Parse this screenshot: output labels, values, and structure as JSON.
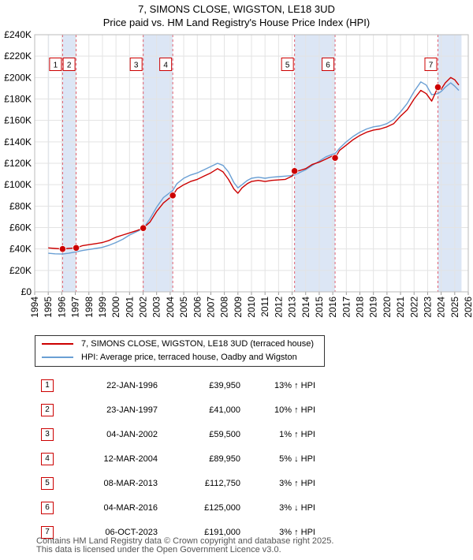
{
  "title_line1": "7, SIMONS CLOSE, WIGSTON, LE18 3UD",
  "title_line2": "Price paid vs. HM Land Registry's House Price Index (HPI)",
  "colors": {
    "property": "#cc0000",
    "hpi": "#6a9fd4",
    "shade": "#dce6f5",
    "marker_border": "#cc0000"
  },
  "legend": {
    "property_label": "7, SIMONS CLOSE, WIGSTON, LE18 3UD (terraced house)",
    "hpi_label": "HPI: Average price, terraced house, Oadby and Wigston"
  },
  "sales": [
    {
      "id": "1",
      "date": "22-JAN-1996",
      "price": "£39,950",
      "hpi": "13% ↑ HPI"
    },
    {
      "id": "2",
      "date": "23-JAN-1997",
      "price": "£41,000",
      "hpi": "10% ↑ HPI"
    },
    {
      "id": "3",
      "date": "04-JAN-2002",
      "price": "£59,500",
      "hpi": "1% ↑ HPI"
    },
    {
      "id": "4",
      "date": "12-MAR-2004",
      "price": "£89,950",
      "hpi": "5% ↓ HPI"
    },
    {
      "id": "5",
      "date": "08-MAR-2013",
      "price": "£112,750",
      "hpi": "3% ↑ HPI"
    },
    {
      "id": "6",
      "date": "04-MAR-2016",
      "price": "£125,000",
      "hpi": "3% ↓ HPI"
    },
    {
      "id": "7",
      "date": "06-OCT-2023",
      "price": "£191,000",
      "hpi": "3% ↑ HPI"
    }
  ],
  "footer": {
    "line1": "Contains HM Land Registry data © Crown copyright and database right 2025.",
    "line2": "This data is licensed under the Open Government Licence v3.0."
  },
  "chart_data": {
    "type": "line",
    "xlim": [
      1994,
      2026
    ],
    "ylim": [
      0,
      240000
    ],
    "grid": true,
    "x_ticks": [
      "1994",
      "1995",
      "1996",
      "1997",
      "1998",
      "1999",
      "2000",
      "2001",
      "2002",
      "2003",
      "2004",
      "2005",
      "2006",
      "2007",
      "2008",
      "2009",
      "2010",
      "2011",
      "2012",
      "2013",
      "2014",
      "2015",
      "2016",
      "2017",
      "2018",
      "2019",
      "2020",
      "2021",
      "2022",
      "2023",
      "2024",
      "2025",
      "2026"
    ],
    "y_ticks": [
      {
        "value": 0,
        "label": "£0"
      },
      {
        "value": 20000,
        "label": "£20K"
      },
      {
        "value": 40000,
        "label": "£40K"
      },
      {
        "value": 60000,
        "label": "£60K"
      },
      {
        "value": 80000,
        "label": "£80K"
      },
      {
        "value": 100000,
        "label": "£100K"
      },
      {
        "value": 120000,
        "label": "£120K"
      },
      {
        "value": 140000,
        "label": "£140K"
      },
      {
        "value": 160000,
        "label": "£160K"
      },
      {
        "value": 180000,
        "label": "£180K"
      },
      {
        "value": 200000,
        "label": "£200K"
      },
      {
        "value": 220000,
        "label": "£220K"
      },
      {
        "value": 240000,
        "label": "£240K"
      }
    ],
    "shaded_ranges": [
      [
        1995.0,
        1995.06
      ],
      [
        1996.06,
        1997.06
      ],
      [
        2002.01,
        2004.19
      ],
      [
        2013.18,
        2016.17
      ],
      [
        2023.76,
        2025.5
      ]
    ],
    "sale_points": [
      {
        "id": "1",
        "x": 1996.06,
        "y": 39950
      },
      {
        "id": "2",
        "x": 1997.06,
        "y": 41000
      },
      {
        "id": "3",
        "x": 2002.01,
        "y": 59500
      },
      {
        "id": "4",
        "x": 2004.19,
        "y": 89950
      },
      {
        "id": "5",
        "x": 2013.18,
        "y": 112750
      },
      {
        "id": "6",
        "x": 2016.17,
        "y": 125000
      },
      {
        "id": "7",
        "x": 2023.76,
        "y": 191000
      }
    ],
    "series": [
      {
        "name": "7, SIMONS CLOSE, WIGSTON, LE18 3UD (terraced house)",
        "color": "#cc0000",
        "x": [
          1995.0,
          1995.5,
          1996.06,
          1996.5,
          1997.06,
          1997.5,
          1998,
          1998.5,
          1999,
          1999.5,
          2000,
          2000.5,
          2001,
          2001.5,
          2002.01,
          2002.5,
          2003,
          2003.5,
          2004.19,
          2004.5,
          2005,
          2005.5,
          2006,
          2006.5,
          2007,
          2007.5,
          2007.9,
          2008.3,
          2008.7,
          2009.0,
          2009.3,
          2009.7,
          2010,
          2010.5,
          2011,
          2011.5,
          2012,
          2012.5,
          2013.0,
          2013.18,
          2013.5,
          2014,
          2014.5,
          2015,
          2015.5,
          2016.0,
          2016.17,
          2016.5,
          2017,
          2017.5,
          2018,
          2018.5,
          2019,
          2019.5,
          2020,
          2020.5,
          2021,
          2021.5,
          2022,
          2022.5,
          2022.9,
          2023.3,
          2023.76,
          2024,
          2024.3,
          2024.7,
          2025.0,
          2025.3
        ],
        "y": [
          41000,
          40500,
          39950,
          40500,
          41000,
          43000,
          44000,
          45000,
          46000,
          48000,
          51000,
          53000,
          55000,
          57000,
          59500,
          65000,
          75000,
          83000,
          89950,
          96000,
          100000,
          103000,
          105000,
          108000,
          111000,
          115000,
          112000,
          105000,
          96000,
          92000,
          97000,
          101000,
          103000,
          104000,
          103000,
          104000,
          104500,
          105000,
          108000,
          112750,
          113000,
          115000,
          119000,
          121000,
          124000,
          127000,
          125000,
          132000,
          137000,
          142000,
          146000,
          149000,
          151000,
          152000,
          154000,
          157000,
          164000,
          170000,
          180000,
          188000,
          185000,
          178000,
          191000,
          189000,
          195000,
          200000,
          198000,
          193000
        ]
      },
      {
        "name": "HPI: Average price, terraced house, Oadby and Wigston",
        "color": "#6a9fd4",
        "x": [
          1995.0,
          1995.5,
          1996.06,
          1996.5,
          1997.06,
          1997.5,
          1998,
          1998.5,
          1999,
          1999.5,
          2000,
          2000.5,
          2001,
          2001.5,
          2002.01,
          2002.5,
          2003,
          2003.5,
          2004.19,
          2004.5,
          2005,
          2005.5,
          2006,
          2006.5,
          2007,
          2007.5,
          2007.9,
          2008.3,
          2008.7,
          2009.0,
          2009.3,
          2009.7,
          2010,
          2010.5,
          2011,
          2011.5,
          2012,
          2012.5,
          2013.0,
          2013.18,
          2013.5,
          2014,
          2014.5,
          2015,
          2015.5,
          2016.0,
          2016.17,
          2016.5,
          2017,
          2017.5,
          2018,
          2018.5,
          2019,
          2019.5,
          2020,
          2020.5,
          2021,
          2021.5,
          2022,
          2022.5,
          2022.9,
          2023.3,
          2023.76,
          2024,
          2024.3,
          2024.7,
          2025.0,
          2025.3
        ],
        "y": [
          36000,
          35500,
          35300,
          36000,
          37300,
          38500,
          39500,
          40500,
          41500,
          43500,
          46000,
          49000,
          53000,
          56000,
          59000,
          68000,
          79000,
          88000,
          94500,
          101000,
          106000,
          109000,
          111000,
          114000,
          117000,
          120000,
          118000,
          112000,
          102000,
          97000,
          100000,
          104000,
          106000,
          107000,
          106000,
          107000,
          107500,
          108000,
          108500,
          109000,
          111000,
          114000,
          118000,
          122000,
          126000,
          128500,
          129000,
          134000,
          140000,
          145000,
          149000,
          152000,
          154000,
          155000,
          157000,
          161000,
          168000,
          176000,
          187000,
          196000,
          193000,
          184000,
          185000,
          187000,
          191000,
          195000,
          192000,
          188000
        ]
      }
    ]
  }
}
